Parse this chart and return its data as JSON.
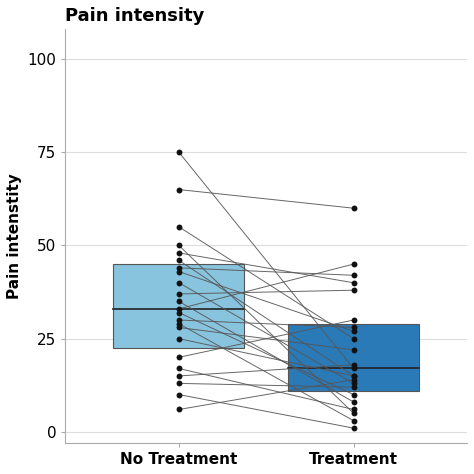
{
  "title": "Pain intensity",
  "ylabel": "Pain intenstity",
  "xlabel": "",
  "ylim": [
    -3,
    108
  ],
  "yticks": [
    0,
    25,
    50,
    75,
    100
  ],
  "xtick_labels": [
    "No Treatment",
    "Treatment"
  ],
  "background_color": "#ffffff",
  "plot_bg_color": "#ffffff",
  "box1_color": "#89c4de",
  "box2_color": "#2b7ab8",
  "box_edge_color": "#555555",
  "line_color": "#555555",
  "dot_color": "#111111",
  "grid_color": "#dddddd",
  "no_treatment": [
    65,
    75,
    55,
    50,
    48,
    46,
    44,
    43,
    40,
    37,
    35,
    33,
    32,
    30,
    29,
    28,
    25,
    20,
    17,
    15,
    13,
    10,
    6
  ],
  "treatment_paired": [
    60,
    17,
    25,
    5,
    40,
    15,
    42,
    27,
    13,
    38,
    8,
    45,
    10,
    28,
    3,
    22,
    15,
    30,
    6,
    18,
    12,
    1,
    14
  ],
  "title_fontsize": 13,
  "label_fontsize": 11,
  "tick_fontsize": 11
}
